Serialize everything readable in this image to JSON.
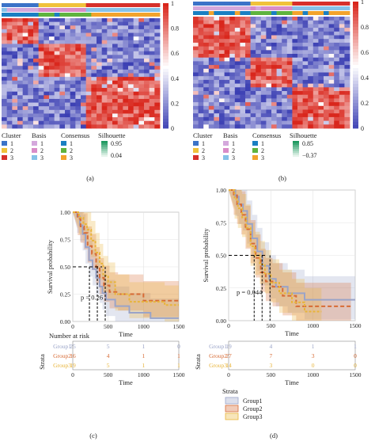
{
  "colors": {
    "low": "#3b3fb3",
    "mid": "#ffffff",
    "high": "#d9261c",
    "cluster": [
      "#3b73c8",
      "#f0c23b",
      "#d6302a"
    ],
    "basis": [
      "#d4a8dc",
      "#d98cc8",
      "#86c2e8"
    ],
    "consensus": [
      "#1a7fc2",
      "#5eb33e",
      "#f2a32c"
    ],
    "silhouette_hi": "#1e9960",
    "silhouette_lo": "#e6f4ec",
    "km": [
      "#9aa4c8",
      "#d76b35",
      "#e8b43a"
    ]
  },
  "panel_labels": [
    "(a)",
    "(b)",
    "(c)",
    "(d)"
  ],
  "chart_data": [
    {
      "type": "heatmap",
      "panel": "a",
      "color_scale": {
        "min": 0,
        "max": 1,
        "ticks": [
          0,
          0.2,
          0.4,
          0.6,
          0.8,
          1
        ]
      },
      "legends": [
        {
          "title": "Cluster",
          "entries": [
            "1",
            "2",
            "3"
          ]
        },
        {
          "title": "Basis",
          "entries": [
            "1",
            "2",
            "3"
          ]
        },
        {
          "title": "Consensus",
          "entries": [
            "1",
            "2",
            "3"
          ]
        },
        {
          "title": "Silhouette",
          "range": [
            "0.95",
            "0.04"
          ]
        }
      ],
      "cluster_fractions": [
        0.24,
        0.3,
        0.46
      ]
    },
    {
      "type": "heatmap",
      "panel": "b",
      "color_scale": {
        "min": 0,
        "max": 1,
        "ticks": [
          0,
          0.2,
          0.4,
          0.6,
          0.8,
          1
        ]
      },
      "legends": [
        {
          "title": "Cluster",
          "entries": [
            "1",
            "2",
            "3"
          ]
        },
        {
          "title": "Basis",
          "entries": [
            "1",
            "2",
            "3"
          ]
        },
        {
          "title": "Consensus",
          "entries": [
            "1",
            "2",
            "3"
          ]
        },
        {
          "title": "Silhouette",
          "range": [
            "0.85",
            "−0.37"
          ]
        }
      ],
      "cluster_fractions": [
        0.36,
        0.28,
        0.36
      ]
    },
    {
      "type": "line",
      "panel": "c",
      "ylabel": "Survival probability",
      "xlabel": "Time",
      "xlim": [
        0,
        1500
      ],
      "ylim": [
        0,
        1
      ],
      "xticks": [
        0,
        500,
        1000,
        1500
      ],
      "yticks": [
        "0.00",
        "0.25",
        "0.50",
        "0.75",
        "1.00"
      ],
      "pvalue": "p = 0.26",
      "series": [
        {
          "x": [
            0,
            60,
            100,
            140,
            180,
            230,
            280,
            330,
            380,
            420,
            470,
            600,
            800,
            1000,
            1100,
            1500
          ],
          "y": [
            1,
            0.96,
            0.88,
            0.8,
            0.68,
            0.56,
            0.48,
            0.4,
            0.32,
            0.26,
            0.2,
            0.14,
            0.08,
            0.08,
            0.03,
            0.03
          ]
        },
        {
          "x": [
            0,
            70,
            110,
            160,
            210,
            270,
            330,
            380,
            440,
            520,
            640,
            800,
            1000,
            1250,
            1500
          ],
          "y": [
            1,
            0.94,
            0.87,
            0.81,
            0.69,
            0.62,
            0.5,
            0.4,
            0.33,
            0.27,
            0.25,
            0.25,
            0.19,
            0.19,
            0.19
          ]
        },
        {
          "x": [
            0,
            90,
            150,
            200,
            260,
            320,
            380,
            430,
            500,
            600,
            800,
            1000,
            1300,
            1500
          ],
          "y": [
            1,
            0.95,
            0.89,
            0.84,
            0.74,
            0.63,
            0.53,
            0.42,
            0.36,
            0.25,
            0.18,
            0.18,
            0.15,
            0.15
          ]
        }
      ],
      "risk_table": {
        "title": "Number at risk",
        "ylabel": "Strata",
        "xlabel": "Time",
        "groups": [
          "Group1",
          "Group2",
          "Group3"
        ],
        "counts": [
          [
            "25",
            "5",
            "1",
            "0"
          ],
          [
            "16",
            "4",
            "1",
            "1"
          ],
          [
            "19",
            "5",
            "1",
            "1"
          ]
        ],
        "xticks": [
          0,
          500,
          1000,
          1500
        ]
      }
    },
    {
      "type": "line",
      "panel": "d",
      "ylabel": "Survival probability",
      "xlabel": "Time",
      "xlim": [
        0,
        1500
      ],
      "ylim": [
        0,
        1
      ],
      "xticks": [
        0,
        500,
        1000,
        1500
      ],
      "yticks": [
        "0.00",
        "0.25",
        "0.50",
        "0.75",
        "1.00"
      ],
      "pvalue": "p = 0.044",
      "series": [
        {
          "x": [
            0,
            80,
            120,
            170,
            220,
            280,
            340,
            400,
            480,
            560,
            700,
            900,
            1100,
            1300,
            1500
          ],
          "y": [
            1,
            0.95,
            0.89,
            0.84,
            0.74,
            0.63,
            0.53,
            0.42,
            0.32,
            0.26,
            0.21,
            0.16,
            0.16,
            0.16,
            0.16
          ]
        },
        {
          "x": [
            0,
            60,
            100,
            150,
            200,
            260,
            320,
            380,
            440,
            520,
            640,
            800,
            1000,
            1200,
            1450
          ],
          "y": [
            1,
            0.96,
            0.89,
            0.81,
            0.7,
            0.59,
            0.48,
            0.37,
            0.3,
            0.26,
            0.19,
            0.11,
            0.11,
            0.11,
            0.11
          ]
        },
        {
          "x": [
            0,
            70,
            110,
            160,
            210,
            260,
            310,
            370,
            430,
            500,
            600,
            750,
            900,
            1100
          ],
          "y": [
            1,
            0.93,
            0.86,
            0.79,
            0.71,
            0.57,
            0.5,
            0.43,
            0.36,
            0.29,
            0.21,
            0.14,
            0.07,
            0.07
          ]
        }
      ],
      "risk_table": {
        "title": "",
        "ylabel": "Strata",
        "xlabel": "Time",
        "groups": [
          "Group1",
          "Group2",
          "Group3"
        ],
        "counts": [
          [
            "19",
            "4",
            "1",
            "1"
          ],
          [
            "27",
            "7",
            "3",
            "0"
          ],
          [
            "14",
            "3",
            "0",
            "0"
          ]
        ],
        "xticks": [
          0,
          500,
          1000,
          1500
        ]
      },
      "legend": {
        "title": "Strata",
        "entries": [
          "Group1",
          "Group2",
          "Group3"
        ]
      }
    }
  ]
}
